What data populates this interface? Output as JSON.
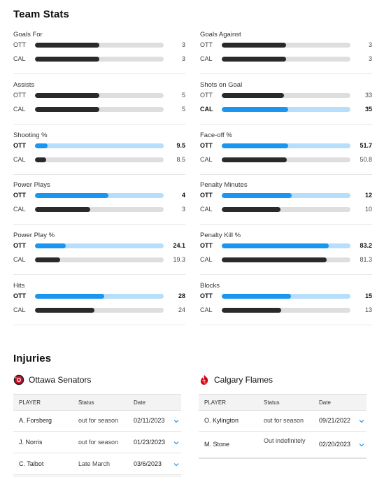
{
  "team_stats": {
    "title": "Team Stats",
    "max_fraction_note": "",
    "stats": [
      {
        "name": "Goals For",
        "rows": [
          {
            "team": "OTT",
            "value": "3",
            "fraction": 0.5,
            "lead": false
          },
          {
            "team": "CAL",
            "value": "3",
            "fraction": 0.5,
            "lead": false
          }
        ]
      },
      {
        "name": "Goals Against",
        "rows": [
          {
            "team": "OTT",
            "value": "3",
            "fraction": 0.5,
            "lead": false
          },
          {
            "team": "CAL",
            "value": "3",
            "fraction": 0.5,
            "lead": false
          }
        ]
      },
      {
        "name": "Assists",
        "rows": [
          {
            "team": "OTT",
            "value": "5",
            "fraction": 0.5,
            "lead": false
          },
          {
            "team": "CAL",
            "value": "5",
            "fraction": 0.5,
            "lead": false
          }
        ]
      },
      {
        "name": "Shots on Goal",
        "rows": [
          {
            "team": "OTT",
            "value": "33",
            "fraction": 0.485,
            "lead": false
          },
          {
            "team": "CAL",
            "value": "35",
            "fraction": 0.515,
            "lead": true
          }
        ]
      },
      {
        "name": "Shooting %",
        "rows": [
          {
            "team": "OTT",
            "value": "9.5",
            "fraction": 0.1,
            "lead": true
          },
          {
            "team": "CAL",
            "value": "8.5",
            "fraction": 0.085,
            "lead": false
          }
        ]
      },
      {
        "name": "Face-off %",
        "rows": [
          {
            "team": "OTT",
            "value": "51.7",
            "fraction": 0.517,
            "lead": true
          },
          {
            "team": "CAL",
            "value": "50.8",
            "fraction": 0.508,
            "lead": false
          }
        ]
      },
      {
        "name": "Power Plays",
        "rows": [
          {
            "team": "OTT",
            "value": "4",
            "fraction": 0.571,
            "lead": true
          },
          {
            "team": "CAL",
            "value": "3",
            "fraction": 0.429,
            "lead": false
          }
        ]
      },
      {
        "name": "Penalty Minutes",
        "rows": [
          {
            "team": "OTT",
            "value": "12",
            "fraction": 0.545,
            "lead": true
          },
          {
            "team": "CAL",
            "value": "10",
            "fraction": 0.455,
            "lead": false
          }
        ]
      },
      {
        "name": "Power Play %",
        "rows": [
          {
            "team": "OTT",
            "value": "24.1",
            "fraction": 0.241,
            "lead": true
          },
          {
            "team": "CAL",
            "value": "19.3",
            "fraction": 0.193,
            "lead": false
          }
        ]
      },
      {
        "name": "Penalty Kill %",
        "rows": [
          {
            "team": "OTT",
            "value": "83.2",
            "fraction": 0.832,
            "lead": true
          },
          {
            "team": "CAL",
            "value": "81.3",
            "fraction": 0.813,
            "lead": false
          }
        ]
      },
      {
        "name": "Hits",
        "rows": [
          {
            "team": "OTT",
            "value": "28",
            "fraction": 0.538,
            "lead": true
          },
          {
            "team": "CAL",
            "value": "24",
            "fraction": 0.462,
            "lead": false
          }
        ]
      },
      {
        "name": "Blocks",
        "rows": [
          {
            "team": "OTT",
            "value": "15",
            "fraction": 0.536,
            "lead": true
          },
          {
            "team": "CAL",
            "value": "13",
            "fraction": 0.464,
            "lead": false
          }
        ]
      }
    ]
  },
  "injuries": {
    "title": "Injuries",
    "columns": {
      "player": "PLAYER",
      "status": "Status",
      "date": "Date"
    },
    "teams": [
      {
        "name": "Ottawa Senators",
        "logo_icon": "ottawa-senators-logo",
        "logo_color": "#c8102e",
        "rows": [
          {
            "player": "A. Forsberg",
            "status": "out for season",
            "date": "02/11/2023"
          },
          {
            "player": "J. Norris",
            "status": "out for season",
            "date": "01/23/2023"
          },
          {
            "player": "C. Talbot",
            "status": "Late March",
            "date": "03/6/2023"
          }
        ]
      },
      {
        "name": "Calgary Flames",
        "logo_icon": "calgary-flames-logo",
        "logo_color": "#d2001c",
        "rows": [
          {
            "player": "O. Kylington",
            "status": "out for season",
            "date": "09/21/2022"
          },
          {
            "player": "M. Stone",
            "status": "Out indefinitely",
            "date": "02/20/2023"
          }
        ]
      }
    ]
  },
  "colors": {
    "accent": "#1a96f0",
    "accent_light": "#b7defa",
    "neutral_fill": "#2a2a2a",
    "track": "#dedede"
  }
}
